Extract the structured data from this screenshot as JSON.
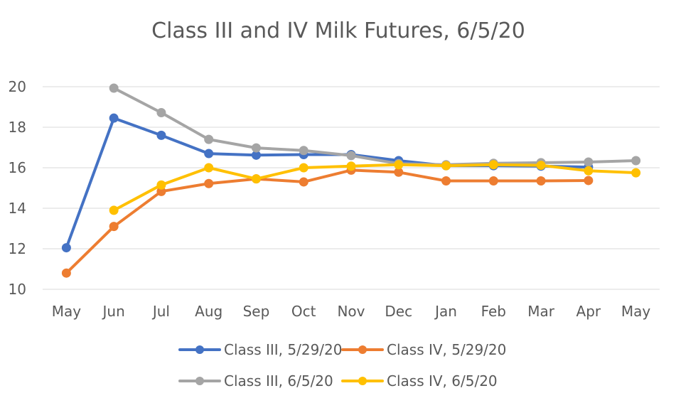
{
  "chart_data": {
    "type": "line",
    "title": "Class III and IV Milk Futures, 6/5/20",
    "categories": [
      "May",
      "Jun",
      "Jul",
      "Aug",
      "Sep",
      "Oct",
      "Nov",
      "Dec",
      "Jan",
      "Feb",
      "Mar",
      "Apr",
      "May"
    ],
    "ylim": [
      10,
      20
    ],
    "yticks": [
      "10",
      "12",
      "14",
      "16",
      "18",
      "20"
    ],
    "grid": true,
    "legend_position": "bottom",
    "series": [
      {
        "name": "Class III, 5/29/20",
        "color": "#4472C4",
        "values": [
          12.05,
          18.45,
          17.6,
          16.7,
          16.62,
          16.65,
          16.65,
          16.35,
          16.1,
          16.1,
          16.08,
          16.03,
          null
        ]
      },
      {
        "name": "Class IV, 5/29/20",
        "color": "#ED7D31",
        "values": [
          10.8,
          13.1,
          14.83,
          15.22,
          15.45,
          15.3,
          15.88,
          15.78,
          15.35,
          15.35,
          15.35,
          15.37,
          null
        ]
      },
      {
        "name": "Class III, 6/5/20",
        "color": "#A5A5A5",
        "values": [
          null,
          19.93,
          18.72,
          17.4,
          16.98,
          16.85,
          16.6,
          16.2,
          16.15,
          16.22,
          16.25,
          16.28,
          16.35
        ]
      },
      {
        "name": "Class IV, 6/5/20",
        "color": "#FFC000",
        "values": [
          null,
          13.9,
          15.15,
          16.0,
          15.45,
          16.0,
          16.08,
          16.15,
          16.1,
          16.15,
          16.12,
          15.85,
          15.75
        ]
      }
    ]
  }
}
